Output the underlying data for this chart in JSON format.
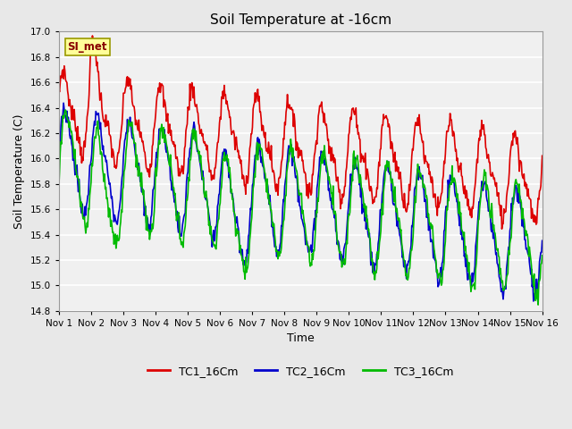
{
  "title": "Soil Temperature at -16cm",
  "xlabel": "Time",
  "ylabel": "Soil Temperature (C)",
  "ylim": [
    14.8,
    17.0
  ],
  "annotation": "SI_met",
  "bg_color": "#e8e8e8",
  "plot_bg_color": "#f0f0f0",
  "line_colors": {
    "TC1": "#dd0000",
    "TC2": "#0000cc",
    "TC3": "#00bb00"
  },
  "legend_labels": [
    "TC1_16Cm",
    "TC2_16Cm",
    "TC3_16Cm"
  ],
  "x_tick_labels": [
    "Nov 1",
    "Nov 2",
    "Nov 3",
    "Nov 4",
    "Nov 5",
    "Nov 6",
    "Nov 7",
    "Nov 8",
    "Nov 9",
    "Nov 10",
    "Nov 11",
    "Nov 12",
    "Nov 13",
    "Nov 14",
    "Nov 15",
    "Nov 16"
  ],
  "n_days": 15,
  "points_per_day": 48,
  "figsize": [
    6.4,
    4.8
  ],
  "dpi": 100
}
